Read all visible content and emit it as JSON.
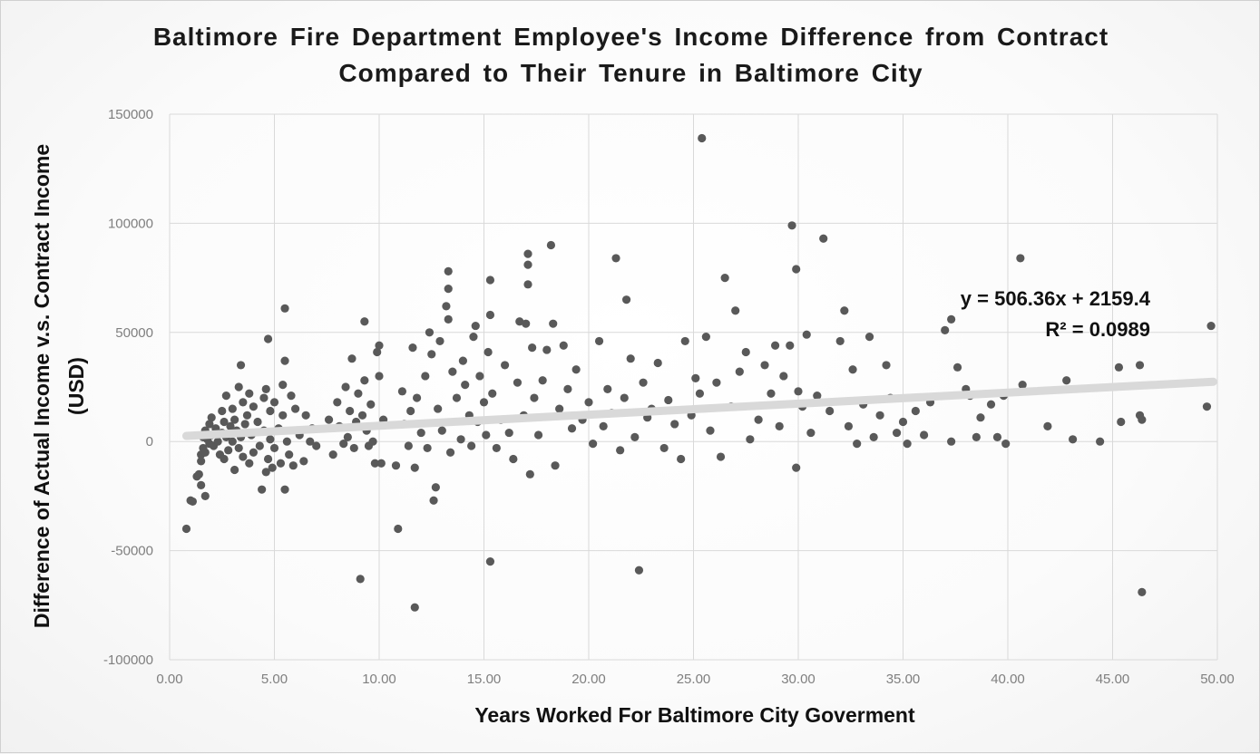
{
  "chart_data": {
    "type": "scatter",
    "title_line1": "Baltimore Fire Department Employee's Income Difference from Contract",
    "title_line2": "Compared to Their Tenure in Baltimore City",
    "xlabel": "Years Worked For Baltimore City Goverment",
    "ylabel_line1": "Difference of Actual Income v.s. Contract Income",
    "ylabel_line2": "(USD)",
    "xlim": [
      0,
      50
    ],
    "ylim": [
      -100000,
      150000
    ],
    "x_ticks": [
      "0.00",
      "5.00",
      "10.00",
      "15.00",
      "20.00",
      "25.00",
      "30.00",
      "35.00",
      "40.00",
      "45.00",
      "50.00"
    ],
    "y_ticks": [
      "-100000",
      "-50000",
      "0",
      "50000",
      "100000",
      "150000"
    ],
    "grid": true,
    "marker_color": "#595959",
    "trendline_color": "#d9d9d9",
    "trendline": {
      "slope": 506.36,
      "intercept": 2159.4,
      "equation_label": "y = 506.36x + 2159.4",
      "r2_label": "R² = 0.0989"
    },
    "series": [
      {
        "points": [
          [
            0.8,
            -40000
          ],
          [
            1.0,
            -27000
          ],
          [
            1.1,
            -27500
          ],
          [
            1.3,
            -16000
          ],
          [
            1.4,
            -15000
          ],
          [
            1.5,
            -9000
          ],
          [
            1.5,
            -20000
          ],
          [
            1.5,
            -6000
          ],
          [
            1.6,
            -3000
          ],
          [
            1.6,
            2000
          ],
          [
            1.7,
            -25000
          ],
          [
            1.7,
            -5000
          ],
          [
            1.7,
            5000
          ],
          [
            1.8,
            1000
          ],
          [
            1.9,
            8000
          ],
          [
            1.9,
            -1000
          ],
          [
            2.0,
            3000
          ],
          [
            2.0,
            11000
          ],
          [
            2.1,
            -2000
          ],
          [
            2.2,
            6000
          ],
          [
            2.3,
            0
          ],
          [
            2.4,
            -6000
          ],
          [
            2.5,
            4000
          ],
          [
            2.5,
            14000
          ],
          [
            2.6,
            -8000
          ],
          [
            2.6,
            9000
          ],
          [
            2.7,
            21000
          ],
          [
            2.7,
            2000
          ],
          [
            2.8,
            -4000
          ],
          [
            2.9,
            7000
          ],
          [
            3.0,
            0
          ],
          [
            3.0,
            15000
          ],
          [
            3.1,
            -13000
          ],
          [
            3.1,
            10000
          ],
          [
            3.2,
            5000
          ],
          [
            3.3,
            -3000
          ],
          [
            3.3,
            25000
          ],
          [
            3.4,
            35000
          ],
          [
            3.4,
            2000
          ],
          [
            3.5,
            18000
          ],
          [
            3.5,
            -7000
          ],
          [
            3.6,
            8000
          ],
          [
            3.7,
            12000
          ],
          [
            3.8,
            -10000
          ],
          [
            3.8,
            22000
          ],
          [
            3.9,
            3000
          ],
          [
            4.0,
            -5000
          ],
          [
            4.0,
            16000
          ],
          [
            4.2,
            9000
          ],
          [
            4.3,
            -2000
          ],
          [
            4.4,
            -22000
          ],
          [
            4.5,
            20000
          ],
          [
            4.5,
            5000
          ],
          [
            4.6,
            -14000
          ],
          [
            4.6,
            24000
          ],
          [
            4.7,
            47000
          ],
          [
            4.7,
            -8000
          ],
          [
            4.8,
            14000
          ],
          [
            4.8,
            1000
          ],
          [
            4.9,
            -12000
          ],
          [
            5.0,
            18000
          ],
          [
            5.0,
            -3000
          ],
          [
            5.2,
            6000
          ],
          [
            5.3,
            -10000
          ],
          [
            5.4,
            26000
          ],
          [
            5.4,
            12000
          ],
          [
            5.5,
            37000
          ],
          [
            5.5,
            61000
          ],
          [
            5.5,
            -22000
          ],
          [
            5.6,
            0
          ],
          [
            5.7,
            -6000
          ],
          [
            5.8,
            21000
          ],
          [
            5.9,
            -11000
          ],
          [
            6.0,
            15000
          ],
          [
            6.2,
            3000
          ],
          [
            6.4,
            -9000
          ],
          [
            6.5,
            12000
          ],
          [
            6.7,
            0
          ],
          [
            6.8,
            6000
          ],
          [
            7.0,
            -2000
          ],
          [
            7.6,
            10000
          ],
          [
            7.8,
            -6000
          ],
          [
            8.0,
            18000
          ],
          [
            8.1,
            7000
          ],
          [
            8.3,
            -1000
          ],
          [
            8.4,
            25000
          ],
          [
            8.5,
            2000
          ],
          [
            8.6,
            14000
          ],
          [
            8.7,
            38000
          ],
          [
            8.8,
            -3000
          ],
          [
            8.9,
            9000
          ],
          [
            9.0,
            22000
          ],
          [
            9.1,
            -63000
          ],
          [
            9.2,
            12000
          ],
          [
            9.3,
            28000
          ],
          [
            9.3,
            55000
          ],
          [
            9.4,
            5000
          ],
          [
            9.5,
            -2000
          ],
          [
            9.6,
            17000
          ],
          [
            9.7,
            0
          ],
          [
            9.8,
            -10000
          ],
          [
            9.9,
            41000
          ],
          [
            10.0,
            44000
          ],
          [
            10.0,
            30000
          ],
          [
            10.1,
            -10000
          ],
          [
            10.2,
            10000
          ],
          [
            10.8,
            -11000
          ],
          [
            10.9,
            -40000
          ],
          [
            11.1,
            23000
          ],
          [
            11.2,
            8000
          ],
          [
            11.4,
            -2000
          ],
          [
            11.5,
            14000
          ],
          [
            11.6,
            43000
          ],
          [
            11.7,
            -12000
          ],
          [
            11.7,
            -76000
          ],
          [
            11.8,
            20000
          ],
          [
            12.0,
            4000
          ],
          [
            12.2,
            30000
          ],
          [
            12.3,
            -3000
          ],
          [
            12.4,
            50000
          ],
          [
            12.5,
            40000
          ],
          [
            12.6,
            -27000
          ],
          [
            12.7,
            -21000
          ],
          [
            12.8,
            15000
          ],
          [
            12.9,
            46000
          ],
          [
            13.0,
            5000
          ],
          [
            13.2,
            62000
          ],
          [
            13.3,
            78000
          ],
          [
            13.3,
            70000
          ],
          [
            13.3,
            56000
          ],
          [
            13.4,
            -5000
          ],
          [
            13.5,
            32000
          ],
          [
            13.7,
            20000
          ],
          [
            13.9,
            1000
          ],
          [
            14.0,
            37000
          ],
          [
            14.1,
            26000
          ],
          [
            14.3,
            12000
          ],
          [
            14.4,
            -2000
          ],
          [
            14.5,
            48000
          ],
          [
            14.6,
            53000
          ],
          [
            14.7,
            9000
          ],
          [
            14.8,
            30000
          ],
          [
            15.0,
            18000
          ],
          [
            15.1,
            3000
          ],
          [
            15.2,
            41000
          ],
          [
            15.3,
            74000
          ],
          [
            15.3,
            58000
          ],
          [
            15.3,
            -55000
          ],
          [
            15.4,
            22000
          ],
          [
            15.6,
            -3000
          ],
          [
            15.8,
            10000
          ],
          [
            16.0,
            35000
          ],
          [
            16.2,
            4000
          ],
          [
            16.4,
            -8000
          ],
          [
            16.6,
            27000
          ],
          [
            16.7,
            55000
          ],
          [
            16.9,
            12000
          ],
          [
            17.0,
            54000
          ],
          [
            17.1,
            86000
          ],
          [
            17.1,
            81000
          ],
          [
            17.1,
            72000
          ],
          [
            17.2,
            -15000
          ],
          [
            17.3,
            43000
          ],
          [
            17.4,
            20000
          ],
          [
            17.6,
            3000
          ],
          [
            17.8,
            28000
          ],
          [
            18.0,
            42000
          ],
          [
            18.2,
            90000
          ],
          [
            18.3,
            54000
          ],
          [
            18.4,
            -11000
          ],
          [
            18.6,
            15000
          ],
          [
            18.8,
            44000
          ],
          [
            19.0,
            24000
          ],
          [
            19.2,
            6000
          ],
          [
            19.4,
            33000
          ],
          [
            19.7,
            10000
          ],
          [
            20.0,
            18000
          ],
          [
            20.2,
            -1000
          ],
          [
            20.5,
            46000
          ],
          [
            20.7,
            7000
          ],
          [
            20.9,
            24000
          ],
          [
            21.1,
            13000
          ],
          [
            21.3,
            84000
          ],
          [
            21.5,
            -4000
          ],
          [
            21.7,
            20000
          ],
          [
            21.8,
            65000
          ],
          [
            22.0,
            38000
          ],
          [
            22.2,
            2000
          ],
          [
            22.4,
            -59000
          ],
          [
            22.6,
            27000
          ],
          [
            22.8,
            11000
          ],
          [
            23.0,
            15000
          ],
          [
            23.3,
            36000
          ],
          [
            23.6,
            -3000
          ],
          [
            23.8,
            19000
          ],
          [
            24.1,
            8000
          ],
          [
            24.4,
            -8000
          ],
          [
            24.6,
            46000
          ],
          [
            24.9,
            12000
          ],
          [
            25.1,
            29000
          ],
          [
            25.3,
            22000
          ],
          [
            25.4,
            139000
          ],
          [
            25.6,
            48000
          ],
          [
            25.8,
            5000
          ],
          [
            26.1,
            27000
          ],
          [
            26.3,
            -7000
          ],
          [
            26.5,
            75000
          ],
          [
            26.8,
            16000
          ],
          [
            27.0,
            60000
          ],
          [
            27.2,
            32000
          ],
          [
            27.5,
            41000
          ],
          [
            27.7,
            1000
          ],
          [
            28.1,
            10000
          ],
          [
            28.4,
            35000
          ],
          [
            28.7,
            22000
          ],
          [
            28.9,
            44000
          ],
          [
            29.1,
            7000
          ],
          [
            29.3,
            30000
          ],
          [
            29.6,
            44000
          ],
          [
            29.7,
            99000
          ],
          [
            29.9,
            79000
          ],
          [
            29.9,
            -12000
          ],
          [
            30.0,
            23000
          ],
          [
            30.2,
            16000
          ],
          [
            30.4,
            49000
          ],
          [
            30.6,
            4000
          ],
          [
            30.9,
            21000
          ],
          [
            31.2,
            93000
          ],
          [
            31.5,
            14000
          ],
          [
            32.0,
            46000
          ],
          [
            32.2,
            60000
          ],
          [
            32.4,
            7000
          ],
          [
            32.6,
            33000
          ],
          [
            32.8,
            -1000
          ],
          [
            33.1,
            17000
          ],
          [
            33.4,
            48000
          ],
          [
            33.6,
            2000
          ],
          [
            33.9,
            12000
          ],
          [
            34.2,
            35000
          ],
          [
            34.4,
            20000
          ],
          [
            34.7,
            4000
          ],
          [
            35.0,
            9000
          ],
          [
            35.2,
            -1000
          ],
          [
            35.6,
            14000
          ],
          [
            36.0,
            3000
          ],
          [
            36.3,
            18000
          ],
          [
            37.0,
            51000
          ],
          [
            37.3,
            56000
          ],
          [
            37.3,
            0
          ],
          [
            37.6,
            34000
          ],
          [
            38.0,
            24000
          ],
          [
            38.2,
            21000
          ],
          [
            38.5,
            2000
          ],
          [
            38.7,
            11000
          ],
          [
            39.2,
            17000
          ],
          [
            39.5,
            2000
          ],
          [
            39.8,
            21000
          ],
          [
            39.9,
            -1000
          ],
          [
            40.6,
            84000
          ],
          [
            40.7,
            26000
          ],
          [
            41.9,
            7000
          ],
          [
            42.8,
            28000
          ],
          [
            43.1,
            1000
          ],
          [
            44.4,
            0
          ],
          [
            45.3,
            34000
          ],
          [
            45.4,
            9000
          ],
          [
            46.3,
            35000
          ],
          [
            46.3,
            12000
          ],
          [
            46.4,
            -69000
          ],
          [
            46.4,
            10000
          ],
          [
            49.5,
            16000
          ],
          [
            49.7,
            53000
          ]
        ]
      }
    ]
  }
}
